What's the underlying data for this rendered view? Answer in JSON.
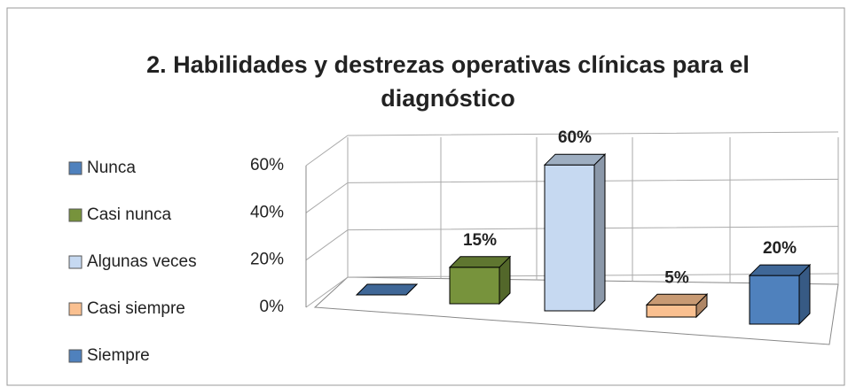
{
  "chart_data": {
    "type": "bar3d",
    "title": "2. Habilidades y destrezas operativas clínicas para el diagnóstico",
    "categories": [
      "Nunca",
      "Casi nunca",
      "Algunas veces",
      "Casi siempre",
      "Siempre"
    ],
    "values": [
      0,
      15,
      60,
      5,
      20
    ],
    "value_labels": [
      null,
      "15%",
      "60%",
      "5%",
      "20%"
    ],
    "colors": [
      "#4f81bd",
      "#77933c",
      "#c6d9f1",
      "#fac090",
      "#4f81bd"
    ],
    "ylim": [
      0,
      60
    ],
    "yticks": [
      {
        "value": 0,
        "label": "0%"
      },
      {
        "value": 20,
        "label": "20%"
      },
      {
        "value": 40,
        "label": "40%"
      },
      {
        "value": 60,
        "label": "60%"
      }
    ],
    "grid": true,
    "legend": "left"
  }
}
